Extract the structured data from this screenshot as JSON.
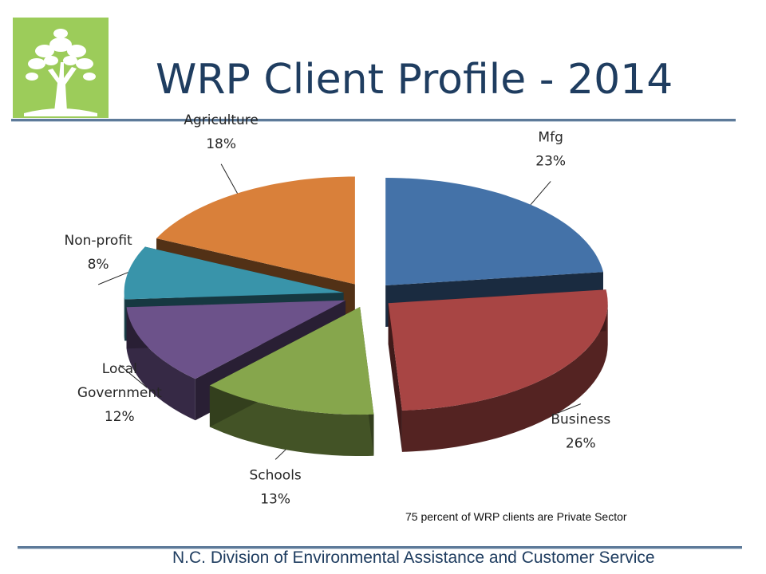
{
  "title": "WRP Client Profile - 2014",
  "note": "75 percent of WRP clients are Private Sector",
  "footer": "N.C. Division of Environmental Assistance and Customer Service",
  "chart_data": {
    "type": "pie",
    "title": "WRP Client Profile - 2014",
    "slices": [
      {
        "label": "Mfg",
        "percent_label": "23%",
        "value": 23,
        "color": "#4472a8"
      },
      {
        "label": "Business",
        "percent_label": "26%",
        "value": 26,
        "color": "#a84544"
      },
      {
        "label": "Schools",
        "percent_label": "13%",
        "value": 13,
        "color": "#86a64c"
      },
      {
        "label": "Local Government",
        "percent_label": "12%",
        "value": 12,
        "color": "#6c528a"
      },
      {
        "label": "Non-profit",
        "percent_label": "8%",
        "value": 8,
        "color": "#3994aa"
      },
      {
        "label": "Agriculture",
        "percent_label": "18%",
        "value": 18,
        "color": "#d9803a"
      }
    ]
  }
}
